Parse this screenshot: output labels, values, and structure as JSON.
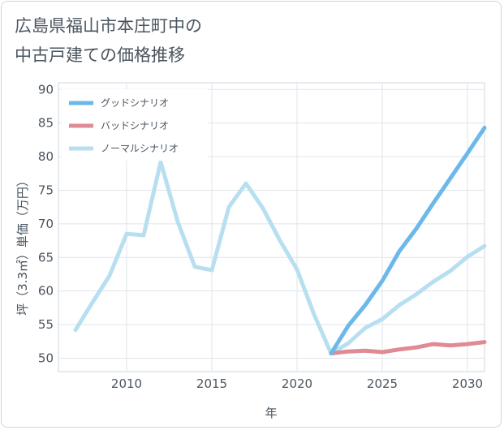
{
  "chart_data": {
    "type": "line",
    "title_lines": [
      "広島県福山市本庄町中の",
      "中古戸建ての価格推移"
    ],
    "xlabel": "年",
    "ylabel": "坪（3.3㎡）単価（万円）",
    "xlim": [
      2006,
      2031
    ],
    "ylim": [
      48,
      91
    ],
    "xticks": [
      2010,
      2015,
      2020,
      2025,
      2030
    ],
    "yticks": [
      50,
      55,
      60,
      65,
      70,
      75,
      80,
      85,
      90
    ],
    "grid": true,
    "legend_position": "top-left",
    "series": [
      {
        "name": "グッドシナリオ",
        "color": "#6cb8ea",
        "x": [
          2022,
          2023,
          2024,
          2025,
          2026,
          2027,
          2028,
          2029,
          2030,
          2031
        ],
        "values": [
          50.7,
          54.8,
          57.9,
          61.5,
          65.9,
          69.3,
          73.1,
          76.8,
          80.5,
          84.3
        ]
      },
      {
        "name": "バッドシナリオ",
        "color": "#e08a93",
        "x": [
          2022,
          2023,
          2024,
          2025,
          2026,
          2027,
          2028,
          2029,
          2030,
          2031
        ],
        "values": [
          50.7,
          51.0,
          51.1,
          50.9,
          51.3,
          51.6,
          52.1,
          51.9,
          52.1,
          52.4
        ]
      },
      {
        "name": "ノーマルシナリオ",
        "color": "#b8dff0",
        "x": [
          2007,
          2008,
          2009,
          2010,
          2011,
          2012,
          2013,
          2014,
          2015,
          2016,
          2017,
          2018,
          2019,
          2020,
          2021,
          2022,
          2023,
          2024,
          2025,
          2026,
          2027,
          2028,
          2029,
          2030,
          2031
        ],
        "values": [
          54.2,
          58.3,
          62.3,
          68.5,
          68.3,
          79.2,
          70.3,
          63.6,
          63.1,
          72.5,
          76.0,
          72.3,
          67.5,
          63.2,
          56.5,
          50.7,
          52.2,
          54.5,
          55.8,
          57.9,
          59.5,
          61.4,
          63.0,
          65.1,
          66.7
        ]
      }
    ]
  }
}
